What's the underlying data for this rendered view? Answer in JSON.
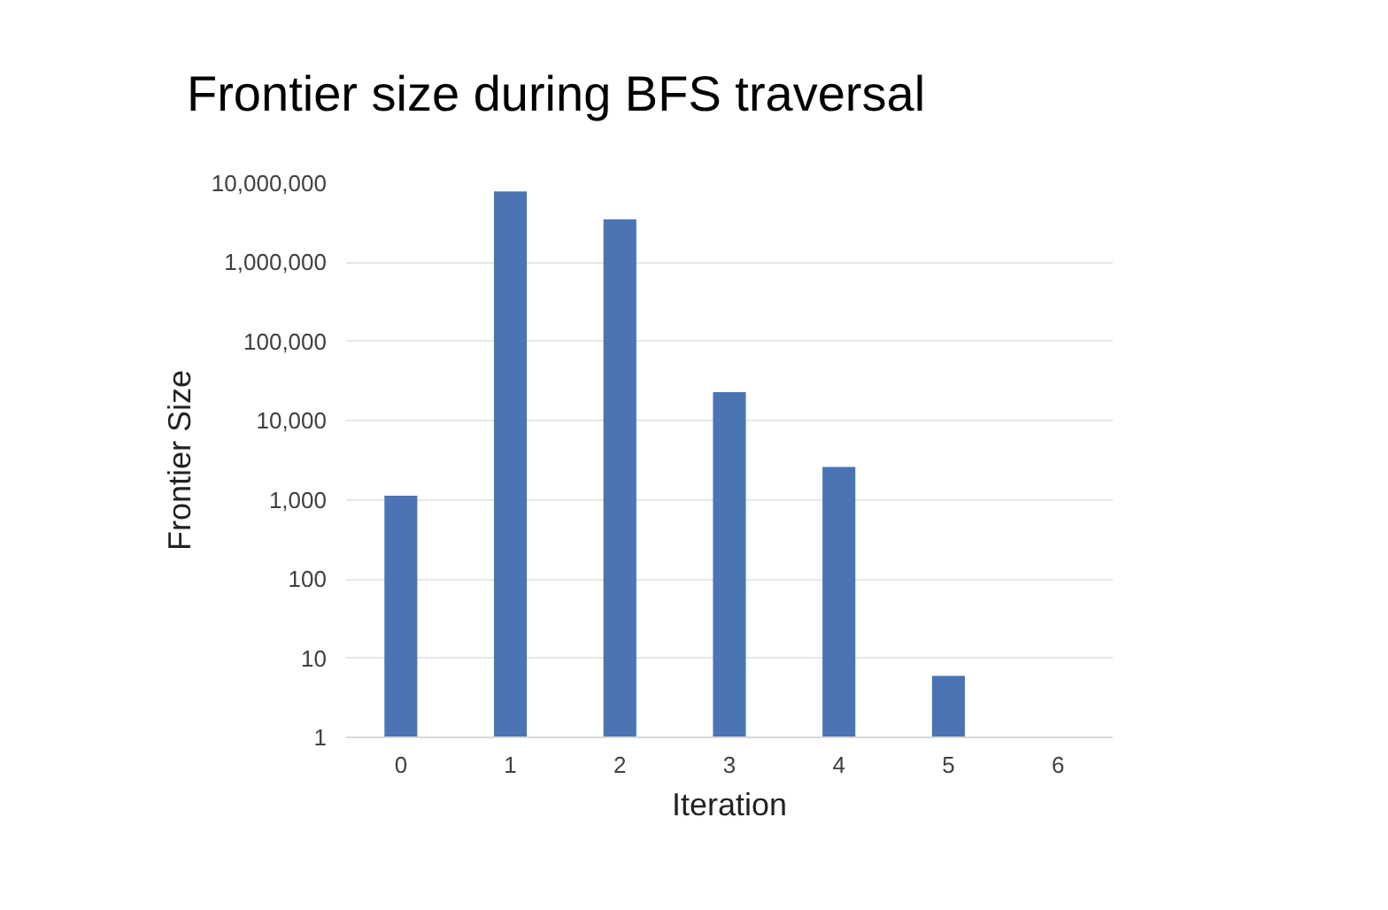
{
  "chart_data": {
    "type": "bar",
    "title": "Frontier size during BFS traversal",
    "xlabel": "Iteration",
    "ylabel": "Frontier Size",
    "categories": [
      "0",
      "1",
      "2",
      "3",
      "4",
      "5",
      "6"
    ],
    "values": [
      1130,
      7900000,
      3500000,
      23000,
      2600,
      6,
      null
    ],
    "color": "#4a74b4",
    "log": true,
    "grid": "y",
    "ylim": [
      1,
      10000000
    ],
    "yticks": [
      {
        "value": 1,
        "label": "1"
      },
      {
        "value": 10,
        "label": "10"
      },
      {
        "value": 100,
        "label": "100"
      },
      {
        "value": 1000,
        "label": "1,000"
      },
      {
        "value": 10000,
        "label": "10,000"
      },
      {
        "value": 100000,
        "label": "100,000"
      },
      {
        "value": 1000000,
        "label": "1,000,000"
      },
      {
        "value": 10000000,
        "label": "10,000,000"
      }
    ]
  }
}
